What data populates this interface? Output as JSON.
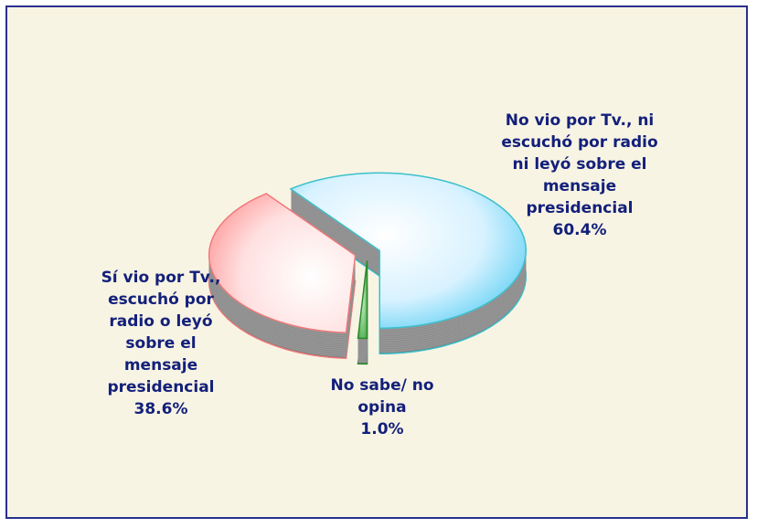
{
  "chart_data": {
    "type": "pie",
    "categories": [
      "No vio por Tv., ni escuchó por radio ni leyó sobre el mensaje presidencial",
      "No sabe/ no opina",
      "Sí vio por Tv., escuchó por radio o leyó sobre el mensaje presidencial"
    ],
    "values": [
      60.4,
      1.0,
      38.6
    ],
    "value_labels": [
      "60.4%",
      "1.0%",
      "38.6%"
    ],
    "colors": [
      "#5fd0f4",
      "#3aa03a",
      "#ff9a9a"
    ]
  }
}
